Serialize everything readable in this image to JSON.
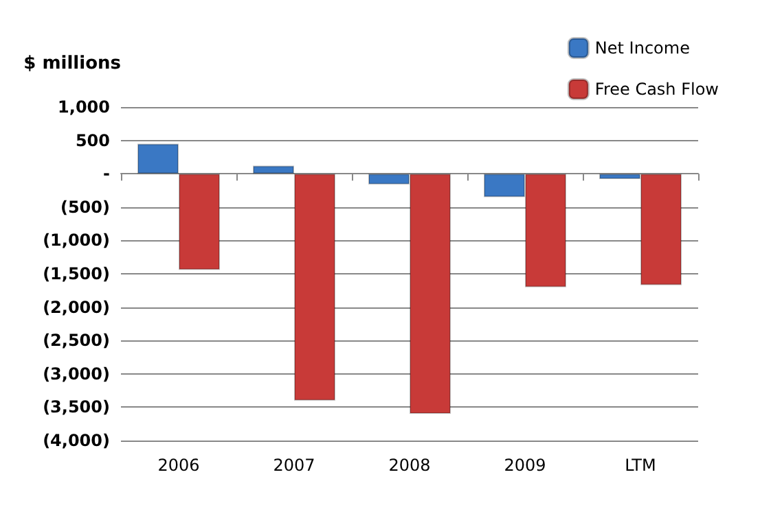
{
  "chart_data": {
    "type": "bar",
    "ylabel": "$ millions",
    "categories": [
      "2006",
      "2007",
      "2008",
      "2009",
      "LTM"
    ],
    "series": [
      {
        "name": "Net Income",
        "color": "#3a78c4",
        "values": [
          450,
          120,
          -160,
          -350,
          -80
        ]
      },
      {
        "name": "Free Cash Flow",
        "color": "#c83a38",
        "values": [
          -1440,
          -3400,
          -3600,
          -1700,
          -1670
        ]
      }
    ],
    "ylim": [
      -4000,
      1000
    ],
    "yticks": [
      {
        "value": -4000,
        "label": "(4,000)"
      },
      {
        "value": -3500,
        "label": "(3,500)"
      },
      {
        "value": -3000,
        "label": "(3,000)"
      },
      {
        "value": -2500,
        "label": "(2,500)"
      },
      {
        "value": -2000,
        "label": "(2,000)"
      },
      {
        "value": -1500,
        "label": "(1,500)"
      },
      {
        "value": -1000,
        "label": "(1,000)"
      },
      {
        "value": -500,
        "label": "(500)"
      },
      {
        "value": 0,
        "label": "-"
      },
      {
        "value": 500,
        "label": "500"
      },
      {
        "value": 1000,
        "label": "1,000"
      }
    ],
    "grid": "y",
    "legend": "top right"
  }
}
